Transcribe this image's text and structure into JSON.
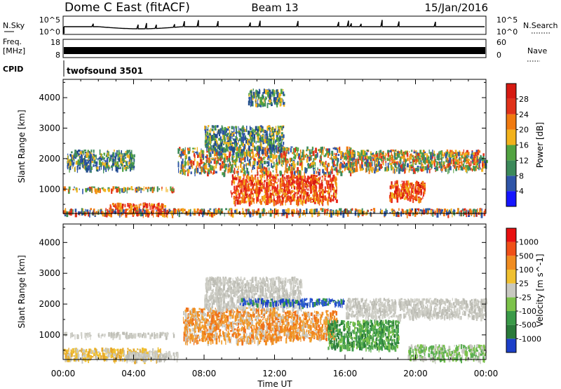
{
  "header": {
    "station": "Dome C East (fitACF)",
    "beam": "Beam 13",
    "date": "15/Jan/2016"
  },
  "strips": {
    "nsky_label": "N.Sky",
    "nsky_top": "10^5",
    "nsky_bottom": "10^0",
    "nsearch_label": "N.Search",
    "nsearch_top": "10^5",
    "nsearch_bottom": "10^0",
    "freq_label": "Freq.",
    "freq_unit": "[MHz]",
    "freq_top": "18",
    "freq_bottom": "8",
    "nave_label": "Nave",
    "nave_top": "60",
    "nave_bottom": "0",
    "cpid_label": "CPID",
    "cpid_value": "twofsound 3501"
  },
  "chart_data": [
    {
      "type": "heatmap",
      "name": "power-panel",
      "ylabel": "Slant Range [km]",
      "colorbar_label": "Power [dB]",
      "ylim": [
        200,
        4600
      ],
      "yticks": [
        1000,
        2000,
        3000,
        4000
      ],
      "xlim_hours": [
        0,
        24
      ],
      "colorbar_ticks": [
        "4",
        "8",
        "12",
        "16",
        "20",
        "24",
        "28"
      ],
      "colorbar_colors": [
        "#1515ff",
        "#2f55a8",
        "#3c8a5a",
        "#52a341",
        "#f2b21c",
        "#f07a10",
        "#e0321a",
        "#d61a12"
      ],
      "regions": [
        {
          "t0": 0.0,
          "t1": 6.3,
          "r0": 1000,
          "r1": 1100,
          "level": "mid"
        },
        {
          "t0": 2.6,
          "t1": 5.8,
          "r0": 220,
          "r1": 560,
          "level": "high"
        },
        {
          "t0": 0.0,
          "t1": 24.0,
          "r0": 220,
          "r1": 380,
          "level": "mixed"
        },
        {
          "t0": 0.2,
          "t1": 4.0,
          "r0": 1700,
          "r1": 2300,
          "level": "low"
        },
        {
          "t0": 6.5,
          "t1": 16.5,
          "r0": 1550,
          "r1": 2400,
          "level": "mid"
        },
        {
          "t0": 8.0,
          "t1": 12.5,
          "r0": 2300,
          "r1": 3100,
          "level": "low"
        },
        {
          "t0": 9.5,
          "t1": 15.5,
          "r0": 600,
          "r1": 1500,
          "level": "high"
        },
        {
          "t0": 18.5,
          "t1": 20.5,
          "r0": 700,
          "r1": 1300,
          "level": "high"
        },
        {
          "t0": 16.0,
          "t1": 24.0,
          "r0": 1650,
          "r1": 2300,
          "level": "mid"
        },
        {
          "t0": 10.5,
          "t1": 12.5,
          "r0": 3800,
          "r1": 4300,
          "level": "low"
        }
      ]
    },
    {
      "type": "heatmap",
      "name": "velocity-panel",
      "ylabel": "Slant Range [km]",
      "colorbar_label": "Velocity [m s^-1]",
      "ylim": [
        200,
        4600
      ],
      "yticks": [
        1000,
        2000,
        3000,
        4000
      ],
      "xlim_hours": [
        0,
        24
      ],
      "colorbar_ticks": [
        "1000",
        "500",
        "100",
        "25",
        "-25",
        "-100",
        "-500",
        "-1000"
      ],
      "colorbar_colors": [
        "#1c3fc8",
        "#2a7a3a",
        "#3a9a48",
        "#7cc24a",
        "#c8c8c0",
        "#f0c030",
        "#f08c20",
        "#f05018",
        "#e81010"
      ],
      "regions": [
        {
          "t0": 0.0,
          "t1": 6.3,
          "r0": 1000,
          "r1": 1100,
          "level": "grey"
        },
        {
          "t0": 0.0,
          "t1": 5.5,
          "r0": 220,
          "r1": 600,
          "level": "amber"
        },
        {
          "t0": 3.5,
          "t1": 6.5,
          "r0": 220,
          "r1": 480,
          "level": "grey"
        },
        {
          "t0": 6.8,
          "t1": 12.0,
          "r0": 800,
          "r1": 1900,
          "level": "orange"
        },
        {
          "t0": 12.0,
          "t1": 15.5,
          "r0": 900,
          "r1": 1800,
          "level": "orange"
        },
        {
          "t0": 8.0,
          "t1": 13.5,
          "r0": 1900,
          "r1": 2900,
          "level": "grey"
        },
        {
          "t0": 10.0,
          "t1": 16.0,
          "r0": 2000,
          "r1": 2200,
          "level": "blue"
        },
        {
          "t0": 15.0,
          "t1": 19.0,
          "r0": 600,
          "r1": 1500,
          "level": "green"
        },
        {
          "t0": 16.0,
          "t1": 24.0,
          "r0": 1600,
          "r1": 2200,
          "level": "grey"
        },
        {
          "t0": 19.5,
          "t1": 24.0,
          "r0": 220,
          "r1": 700,
          "level": "lightgreen"
        }
      ]
    }
  ],
  "xaxis": {
    "label": "Time UT",
    "ticks": [
      "00:00",
      "04:00",
      "08:00",
      "12:00",
      "16:00",
      "20:00",
      "00:00"
    ]
  }
}
